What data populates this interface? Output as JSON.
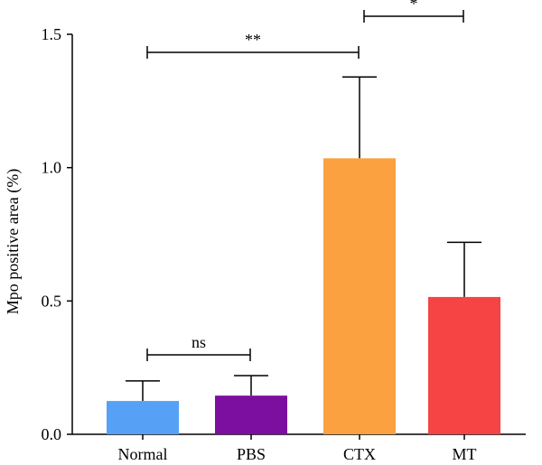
{
  "chart_data": {
    "type": "bar",
    "categories": [
      "Normal",
      "PBS",
      "CTX",
      "MT"
    ],
    "values": [
      0.125,
      0.145,
      1.035,
      0.515
    ],
    "errors": [
      0.075,
      0.075,
      0.305,
      0.205
    ],
    "colors": [
      "#56a1f5",
      "#7c0fa0",
      "#fba13f",
      "#f54443"
    ],
    "title": "",
    "xlabel": "",
    "ylabel": "Mpo positive area (%)",
    "ylim": [
      0,
      1.5
    ],
    "yticks": [
      "0.0",
      "0.5",
      "1.0",
      "1.5"
    ],
    "significance": [
      {
        "from": "Normal",
        "to": "PBS",
        "label": "ns"
      },
      {
        "from": "Normal",
        "to": "CTX",
        "label": "**"
      },
      {
        "from": "CTX",
        "to": "MT",
        "label": "*"
      }
    ],
    "grid": false,
    "legend": "none"
  }
}
